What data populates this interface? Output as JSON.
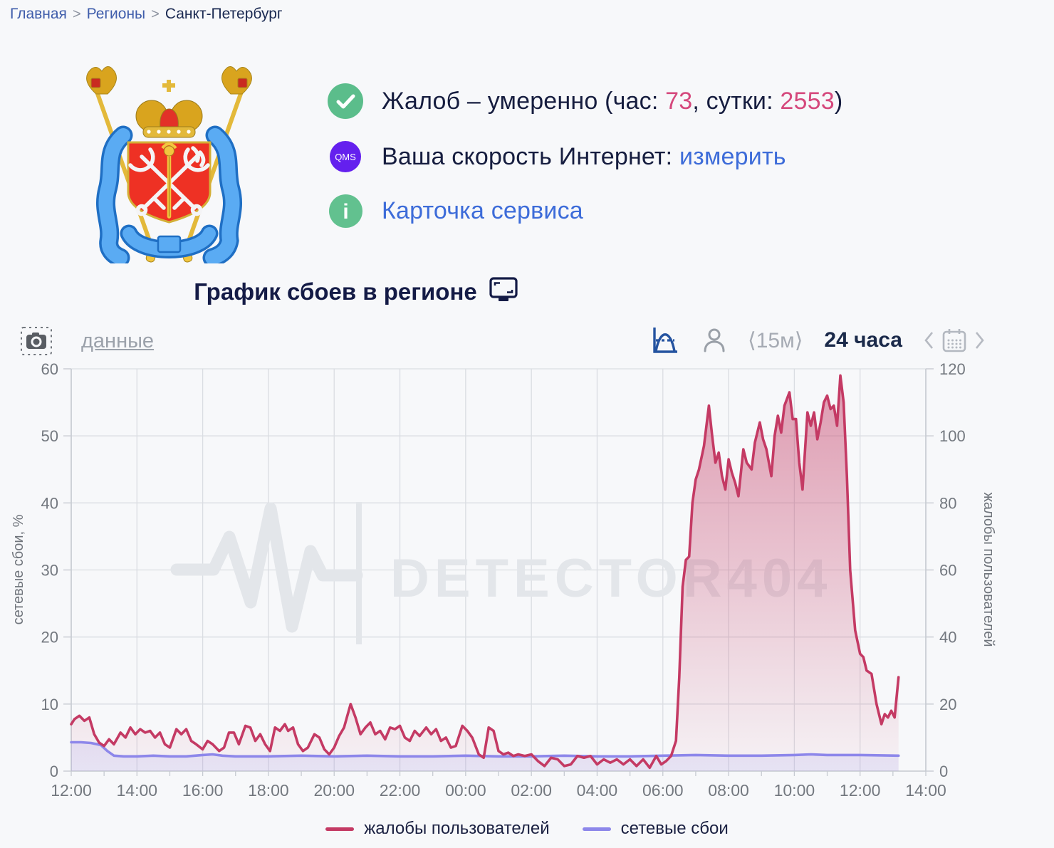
{
  "breadcrumb": {
    "separator": ">",
    "items": [
      "Главная",
      "Регионы",
      "Санкт-Петербург"
    ]
  },
  "status": {
    "complaints": {
      "prefix": "Жалоб – умеренно (час: ",
      "hour": "73",
      "mid": ", сутки: ",
      "day": "2553",
      "suffix": ")"
    },
    "speed": {
      "badge": "QMS",
      "label": "Ваша скорость Интернет: ",
      "link": "измерить"
    },
    "service_card": {
      "link": "Карточка сервиса"
    }
  },
  "chart_header": {
    "title": "График сбоев в регионе"
  },
  "toolbar": {
    "data_link": "данные",
    "interval": "⟨15м⟩",
    "period": "24 часа"
  },
  "colors": {
    "accent_pink": "#d5487c",
    "link_blue": "#3d6cd9",
    "navy": "#161d3f",
    "badge_green": "#5bbd8b",
    "badge_purple": "#6420ee",
    "series_crimson": "#c43a64",
    "series_periwinkle": "#8d87ea"
  },
  "chart_data": {
    "type": "line",
    "title": "График сбоев в регионе",
    "watermark": "DETECTOR404",
    "x_hours_span": 26,
    "x_tick_step_hours": 2,
    "x_ticks": [
      "12:00",
      "14:00",
      "16:00",
      "18:00",
      "20:00",
      "22:00",
      "00:00",
      "02:00",
      "04:00",
      "06:00",
      "08:00",
      "10:00",
      "12:00",
      "14:00"
    ],
    "left_axis": {
      "label": "сетевые сбои, %",
      "min": 0,
      "max": 60,
      "ticks": [
        0,
        10,
        20,
        30,
        40,
        50,
        60
      ]
    },
    "right_axis": {
      "label": "жалобы пользователей",
      "min": 0,
      "max": 120,
      "ticks": [
        0,
        20,
        40,
        60,
        80,
        100,
        120
      ]
    },
    "grid": true,
    "legend_position": "bottom",
    "series": [
      {
        "name": "жалобы пользователей",
        "axis": "right",
        "color": "#c43a64",
        "fill_top_alpha": 0.5,
        "fill_bottom_alpha": 0.03,
        "points": [
          [
            0,
            14
          ],
          [
            0.1,
            15.5
          ],
          [
            0.25,
            16.5
          ],
          [
            0.4,
            15
          ],
          [
            0.55,
            16
          ],
          [
            0.7,
            11
          ],
          [
            0.85,
            8.5
          ],
          [
            1,
            7.5
          ],
          [
            1.15,
            9.5
          ],
          [
            1.3,
            8
          ],
          [
            1.5,
            11.5
          ],
          [
            1.65,
            10
          ],
          [
            1.8,
            13
          ],
          [
            1.95,
            11
          ],
          [
            2.1,
            12.5
          ],
          [
            2.25,
            11.5
          ],
          [
            2.4,
            12
          ],
          [
            2.55,
            10
          ],
          [
            2.7,
            11.5
          ],
          [
            2.85,
            8
          ],
          [
            3,
            7
          ],
          [
            3.2,
            12.5
          ],
          [
            3.35,
            11
          ],
          [
            3.5,
            12.5
          ],
          [
            3.65,
            9
          ],
          [
            3.8,
            8
          ],
          [
            4,
            6.5
          ],
          [
            4.15,
            9
          ],
          [
            4.3,
            8
          ],
          [
            4.5,
            6
          ],
          [
            4.65,
            7
          ],
          [
            4.8,
            11.5
          ],
          [
            4.95,
            11.5
          ],
          [
            5.1,
            8
          ],
          [
            5.3,
            13.5
          ],
          [
            5.45,
            13
          ],
          [
            5.6,
            9
          ],
          [
            5.75,
            11
          ],
          [
            5.9,
            8
          ],
          [
            6.05,
            6
          ],
          [
            6.2,
            13
          ],
          [
            6.35,
            12
          ],
          [
            6.5,
            14
          ],
          [
            6.6,
            12
          ],
          [
            6.75,
            13
          ],
          [
            6.9,
            8
          ],
          [
            7.05,
            6
          ],
          [
            7.2,
            7
          ],
          [
            7.4,
            11
          ],
          [
            7.55,
            10
          ],
          [
            7.7,
            6.5
          ],
          [
            7.85,
            5
          ],
          [
            8,
            7
          ],
          [
            8.15,
            10.5
          ],
          [
            8.3,
            13
          ],
          [
            8.5,
            20
          ],
          [
            8.65,
            16
          ],
          [
            8.8,
            11
          ],
          [
            8.95,
            13
          ],
          [
            9.1,
            14.5
          ],
          [
            9.25,
            11
          ],
          [
            9.4,
            12
          ],
          [
            9.55,
            9.5
          ],
          [
            9.7,
            13
          ],
          [
            9.85,
            12.5
          ],
          [
            10,
            13.5
          ],
          [
            10.15,
            10
          ],
          [
            10.3,
            9
          ],
          [
            10.45,
            12
          ],
          [
            10.6,
            10.5
          ],
          [
            10.8,
            13
          ],
          [
            10.95,
            11
          ],
          [
            11.1,
            12.5
          ],
          [
            11.25,
            9
          ],
          [
            11.4,
            10
          ],
          [
            11.55,
            7
          ],
          [
            11.7,
            7.5
          ],
          [
            11.9,
            13.5
          ],
          [
            12.05,
            12
          ],
          [
            12.2,
            10
          ],
          [
            12.4,
            5
          ],
          [
            12.55,
            4
          ],
          [
            12.7,
            13
          ],
          [
            12.85,
            12
          ],
          [
            13,
            6
          ],
          [
            13.15,
            5
          ],
          [
            13.3,
            5.5
          ],
          [
            13.45,
            4.5
          ],
          [
            13.6,
            5
          ],
          [
            13.8,
            4.5
          ],
          [
            14,
            5
          ],
          [
            14.2,
            3
          ],
          [
            14.4,
            1.5
          ],
          [
            14.6,
            4
          ],
          [
            14.8,
            3.5
          ],
          [
            15,
            1.5
          ],
          [
            15.2,
            2
          ],
          [
            15.4,
            4.5
          ],
          [
            15.6,
            4
          ],
          [
            15.8,
            4.5
          ],
          [
            16,
            2
          ],
          [
            16.2,
            3.5
          ],
          [
            16.4,
            2.5
          ],
          [
            16.6,
            3.5
          ],
          [
            16.8,
            2
          ],
          [
            17,
            3.5
          ],
          [
            17.2,
            1.5
          ],
          [
            17.4,
            3.5
          ],
          [
            17.6,
            1
          ],
          [
            17.8,
            4.5
          ],
          [
            17.95,
            2
          ],
          [
            18.1,
            3
          ],
          [
            18.25,
            4.5
          ],
          [
            18.4,
            9
          ],
          [
            18.5,
            28
          ],
          [
            18.6,
            55
          ],
          [
            18.7,
            63
          ],
          [
            18.8,
            64
          ],
          [
            18.9,
            80
          ],
          [
            19,
            87
          ],
          [
            19.1,
            90
          ],
          [
            19.25,
            97
          ],
          [
            19.4,
            109
          ],
          [
            19.5,
            100
          ],
          [
            19.6,
            92
          ],
          [
            19.7,
            95
          ],
          [
            19.8,
            88
          ],
          [
            19.9,
            84
          ],
          [
            20,
            93
          ],
          [
            20.1,
            89
          ],
          [
            20.2,
            86
          ],
          [
            20.3,
            82
          ],
          [
            20.45,
            96
          ],
          [
            20.55,
            92
          ],
          [
            20.7,
            90
          ],
          [
            20.8,
            98
          ],
          [
            20.95,
            104
          ],
          [
            21.05,
            99
          ],
          [
            21.15,
            96
          ],
          [
            21.3,
            88
          ],
          [
            21.4,
            100
          ],
          [
            21.5,
            106
          ],
          [
            21.6,
            101
          ],
          [
            21.7,
            109
          ],
          [
            21.85,
            113
          ],
          [
            21.95,
            105
          ],
          [
            22.05,
            105
          ],
          [
            22.15,
            92
          ],
          [
            22.25,
            84
          ],
          [
            22.4,
            107
          ],
          [
            22.5,
            103
          ],
          [
            22.6,
            107
          ],
          [
            22.7,
            99
          ],
          [
            22.8,
            104
          ],
          [
            22.9,
            110
          ],
          [
            23,
            112
          ],
          [
            23.1,
            108
          ],
          [
            23.2,
            109
          ],
          [
            23.3,
            103
          ],
          [
            23.4,
            118
          ],
          [
            23.5,
            110
          ],
          [
            23.6,
            88
          ],
          [
            23.7,
            60
          ],
          [
            23.85,
            42
          ],
          [
            24,
            35
          ],
          [
            24.1,
            34
          ],
          [
            24.2,
            30
          ],
          [
            24.35,
            29
          ],
          [
            24.5,
            20
          ],
          [
            24.65,
            14
          ],
          [
            24.75,
            17
          ],
          [
            24.85,
            16
          ],
          [
            24.95,
            18
          ],
          [
            25.05,
            16
          ],
          [
            25.17,
            28
          ]
        ]
      },
      {
        "name": "сетевые сбои",
        "axis": "left",
        "color": "#8d87ea",
        "fill_top_alpha": 0.32,
        "fill_bottom_alpha": 0.14,
        "points": [
          [
            0,
            4.3
          ],
          [
            0.3,
            4.3
          ],
          [
            0.6,
            4.2
          ],
          [
            0.9,
            3.9
          ],
          [
            1.1,
            3
          ],
          [
            1.3,
            2.3
          ],
          [
            1.6,
            2.2
          ],
          [
            2,
            2.2
          ],
          [
            2.5,
            2.3
          ],
          [
            3,
            2.2
          ],
          [
            3.5,
            2.2
          ],
          [
            4,
            2.4
          ],
          [
            4.3,
            2.5
          ],
          [
            4.6,
            2.3
          ],
          [
            5,
            2.2
          ],
          [
            6,
            2.2
          ],
          [
            7,
            2.3
          ],
          [
            8,
            2.2
          ],
          [
            9,
            2.3
          ],
          [
            10,
            2.2
          ],
          [
            11,
            2.2
          ],
          [
            12,
            2.3
          ],
          [
            13,
            2.2
          ],
          [
            14,
            2.2
          ],
          [
            15,
            2.3
          ],
          [
            16,
            2.2
          ],
          [
            17,
            2.2
          ],
          [
            18,
            2.3
          ],
          [
            19,
            2.4
          ],
          [
            20,
            2.3
          ],
          [
            21,
            2.3
          ],
          [
            22,
            2.4
          ],
          [
            22.5,
            2.5
          ],
          [
            23,
            2.4
          ],
          [
            24,
            2.4
          ],
          [
            25.17,
            2.3
          ]
        ]
      }
    ]
  }
}
